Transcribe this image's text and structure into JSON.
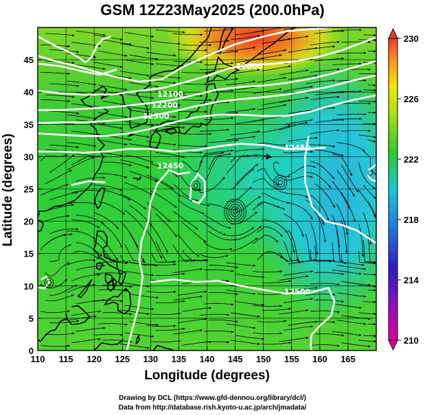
{
  "chart_data": {
    "type": "heatmap",
    "title": "GSM 12Z23May2025 (200.0hPa)",
    "xlabel": "Longitude (degrees)",
    "ylabel": "Latitude  (degrees)",
    "xlim": [
      110,
      170
    ],
    "ylim": [
      0,
      50
    ],
    "x_ticks": [
      "110",
      "115",
      "120",
      "125",
      "130",
      "135",
      "140",
      "145",
      "150",
      "155",
      "160",
      "165"
    ],
    "y_ticks": [
      "0",
      "5",
      "10",
      "15",
      "20",
      "25",
      "30",
      "35",
      "40",
      "45"
    ],
    "x_tick_values": [
      110,
      115,
      120,
      125,
      130,
      135,
      140,
      145,
      150,
      155,
      160,
      165
    ],
    "y_tick_values": [
      0,
      5,
      10,
      15,
      20,
      25,
      30,
      35,
      40,
      45
    ],
    "grid": true,
    "overlays": [
      "temperature shading",
      "geopotential height contours",
      "wind streamlines",
      "coastlines"
    ],
    "colorbar": {
      "position": "right",
      "range": [
        210,
        230
      ],
      "ticks": [
        "210",
        "214",
        "218",
        "222",
        "226",
        "230"
      ],
      "tick_values": [
        210,
        214,
        218,
        222,
        226,
        230
      ],
      "colors": [
        "#e0009a",
        "#2a1ec8",
        "#1f9ee8",
        "#19d0c8",
        "#2acd2a",
        "#f0e60a",
        "#ff7a1a",
        "#e8402a"
      ]
    },
    "contour_labels": [
      {
        "text": "12000",
        "lon": 147.5,
        "lat": 43.6
      },
      {
        "text": "12100",
        "lon": 133.5,
        "lat": 39.3
      },
      {
        "text": "12200",
        "lon": 132.5,
        "lat": 37.6
      },
      {
        "text": "12300",
        "lon": 131.0,
        "lat": 35.9
      },
      {
        "text": "12450",
        "lon": 156.0,
        "lat": 31.0
      },
      {
        "text": "12500",
        "lon": 156.0,
        "lat": 8.7
      },
      {
        "text": "12450",
        "lon": 133.5,
        "lat": 28.2
      }
    ],
    "warm_patch": {
      "lon": 148.5,
      "lat": 48.5
    },
    "cool_region": {
      "lon": 162.0,
      "lat": 25.0
    },
    "eddies": [
      {
        "lon": 138.0,
        "lat": 25.5,
        "size": 9
      },
      {
        "lon": 145.0,
        "lat": 21.5,
        "size": 16
      },
      {
        "lon": 153.0,
        "lat": 26.0,
        "size": 12
      },
      {
        "lon": 112.0,
        "lat": 10.5,
        "size": 8
      },
      {
        "lon": 169.0,
        "lat": 27.5,
        "size": 6
      }
    ]
  },
  "credits": {
    "line1": "Drawing by DCL (https://www.gfd-dennou.org/library/dcl/)",
    "line2": "Data from http://database.rish.kyoto-u.ac.jp/arch/jmadata/"
  }
}
